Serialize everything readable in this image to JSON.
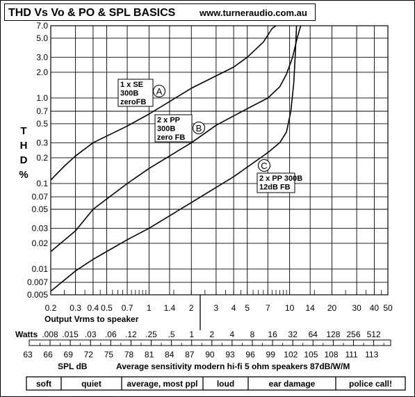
{
  "title": "THD Vs Vo & PO & SPL BASICS",
  "website": "www.turneraudio.com.au",
  "chart_data": {
    "type": "line",
    "xscale": "log",
    "yscale": "log",
    "xlim": [
      0.2,
      50
    ],
    "ylim": [
      0.005,
      7.0
    ],
    "grid": true,
    "xlabel": "Output Vrms to speaker",
    "ylabel": "T H D %",
    "ylabel_letters": [
      "T",
      "H",
      "D",
      "%"
    ],
    "xticks": [
      {
        "v": 0.2,
        "label": "0.2"
      },
      {
        "v": 0.3,
        "label": "0.3"
      },
      {
        "v": 0.4,
        "label": "0.4"
      },
      {
        "v": 0.5,
        "label": "0.5"
      },
      {
        "v": 0.7,
        "label": "0.7"
      },
      {
        "v": 1,
        "label": "1"
      },
      {
        "v": 1.4,
        "label": "1.4"
      },
      {
        "v": 2,
        "label": "2"
      },
      {
        "v": 3,
        "label": "3"
      },
      {
        "v": 4,
        "label": "4"
      },
      {
        "v": 5,
        "label": "5"
      },
      {
        "v": 7,
        "label": "7"
      },
      {
        "v": 10,
        "label": "10"
      },
      {
        "v": 14,
        "label": "14"
      },
      {
        "v": 20,
        "label": "20"
      },
      {
        "v": 30,
        "label": "30"
      },
      {
        "v": 40,
        "label": "40"
      },
      {
        "v": 50,
        "label": "50"
      }
    ],
    "yticks": [
      {
        "v": 7.0,
        "label": "7.0"
      },
      {
        "v": 5.0,
        "label": "5.0"
      },
      {
        "v": 3.0,
        "label": "3.0"
      },
      {
        "v": 2.0,
        "label": "2.0"
      },
      {
        "v": 1.0,
        "label": "1.0"
      },
      {
        "v": 0.7,
        "label": "0.7"
      },
      {
        "v": 0.5,
        "label": "0.5"
      },
      {
        "v": 0.3,
        "label": "0.3"
      },
      {
        "v": 0.2,
        "label": "0.2"
      },
      {
        "v": 0.1,
        "label": "0.1"
      },
      {
        "v": 0.07,
        "label": "0.07"
      },
      {
        "v": 0.05,
        "label": "0.05"
      },
      {
        "v": 0.03,
        "label": "0.03"
      },
      {
        "v": 0.02,
        "label": "0.02"
      },
      {
        "v": 0.01,
        "label": "0.01"
      },
      {
        "v": 0.007,
        "label": "0.007"
      },
      {
        "v": 0.005,
        "label": "0.005"
      }
    ],
    "series": [
      {
        "name": "A",
        "box_label": [
          "1 x SE",
          "300B",
          "zeroFB"
        ],
        "points": [
          [
            0.2,
            0.11
          ],
          [
            0.25,
            0.16
          ],
          [
            0.3,
            0.21
          ],
          [
            0.4,
            0.3
          ],
          [
            0.7,
            0.47
          ],
          [
            1,
            0.65
          ],
          [
            2,
            1.3
          ],
          [
            4,
            2.3
          ],
          [
            5,
            3.0
          ],
          [
            6.5,
            4.5
          ],
          [
            7.5,
            6.5
          ],
          [
            8,
            7.0
          ]
        ]
      },
      {
        "name": "B",
        "box_label": [
          "2 x PP",
          "300B",
          "zero FB"
        ],
        "points": [
          [
            0.2,
            0.016
          ],
          [
            0.3,
            0.028
          ],
          [
            0.4,
            0.05
          ],
          [
            0.7,
            0.1
          ],
          [
            1,
            0.15
          ],
          [
            2,
            0.3
          ],
          [
            3,
            0.48
          ],
          [
            5,
            0.75
          ],
          [
            7,
            1.0
          ],
          [
            8.5,
            1.35
          ],
          [
            9.5,
            1.9
          ],
          [
            10.5,
            3.0
          ],
          [
            11.3,
            5.0
          ],
          [
            12,
            7.0
          ]
        ]
      },
      {
        "name": "C",
        "box_label": [
          "2 x PP 300B",
          "12dB FB"
        ],
        "points": [
          [
            0.2,
            0.0055
          ],
          [
            0.3,
            0.0095
          ],
          [
            0.4,
            0.013
          ],
          [
            0.7,
            0.022
          ],
          [
            1,
            0.03
          ],
          [
            2,
            0.06
          ],
          [
            4,
            0.12
          ],
          [
            7,
            0.23
          ],
          [
            8.5,
            0.3
          ],
          [
            9.5,
            0.4
          ],
          [
            10.2,
            0.7
          ],
          [
            10.7,
            1.5
          ],
          [
            11.0,
            3.5
          ],
          [
            11.2,
            7.0
          ]
        ]
      }
    ]
  },
  "watts_scale": {
    "header": "Watts",
    "values": [
      ".008",
      ".015",
      ".03",
      ".06",
      ".12",
      ".25",
      ".5",
      "1",
      "2",
      "4",
      "8",
      "16",
      "32",
      "64",
      "128",
      "256",
      "512"
    ]
  },
  "spl_scale": {
    "values": [
      "63",
      "66",
      "69",
      "72",
      "75",
      "78",
      "81",
      "84",
      "87",
      "90",
      "93",
      "96",
      "99",
      "102",
      "105",
      "108",
      "111",
      "113"
    ],
    "label": "SPL dB",
    "note": "Average sensitivity modern hi-fi 5 ohm  speakers 87dB/W/M"
  },
  "loudness_zones": [
    "soft",
    "quiet",
    "average, most ppl",
    "loud",
    "ear damage",
    "police call!"
  ]
}
